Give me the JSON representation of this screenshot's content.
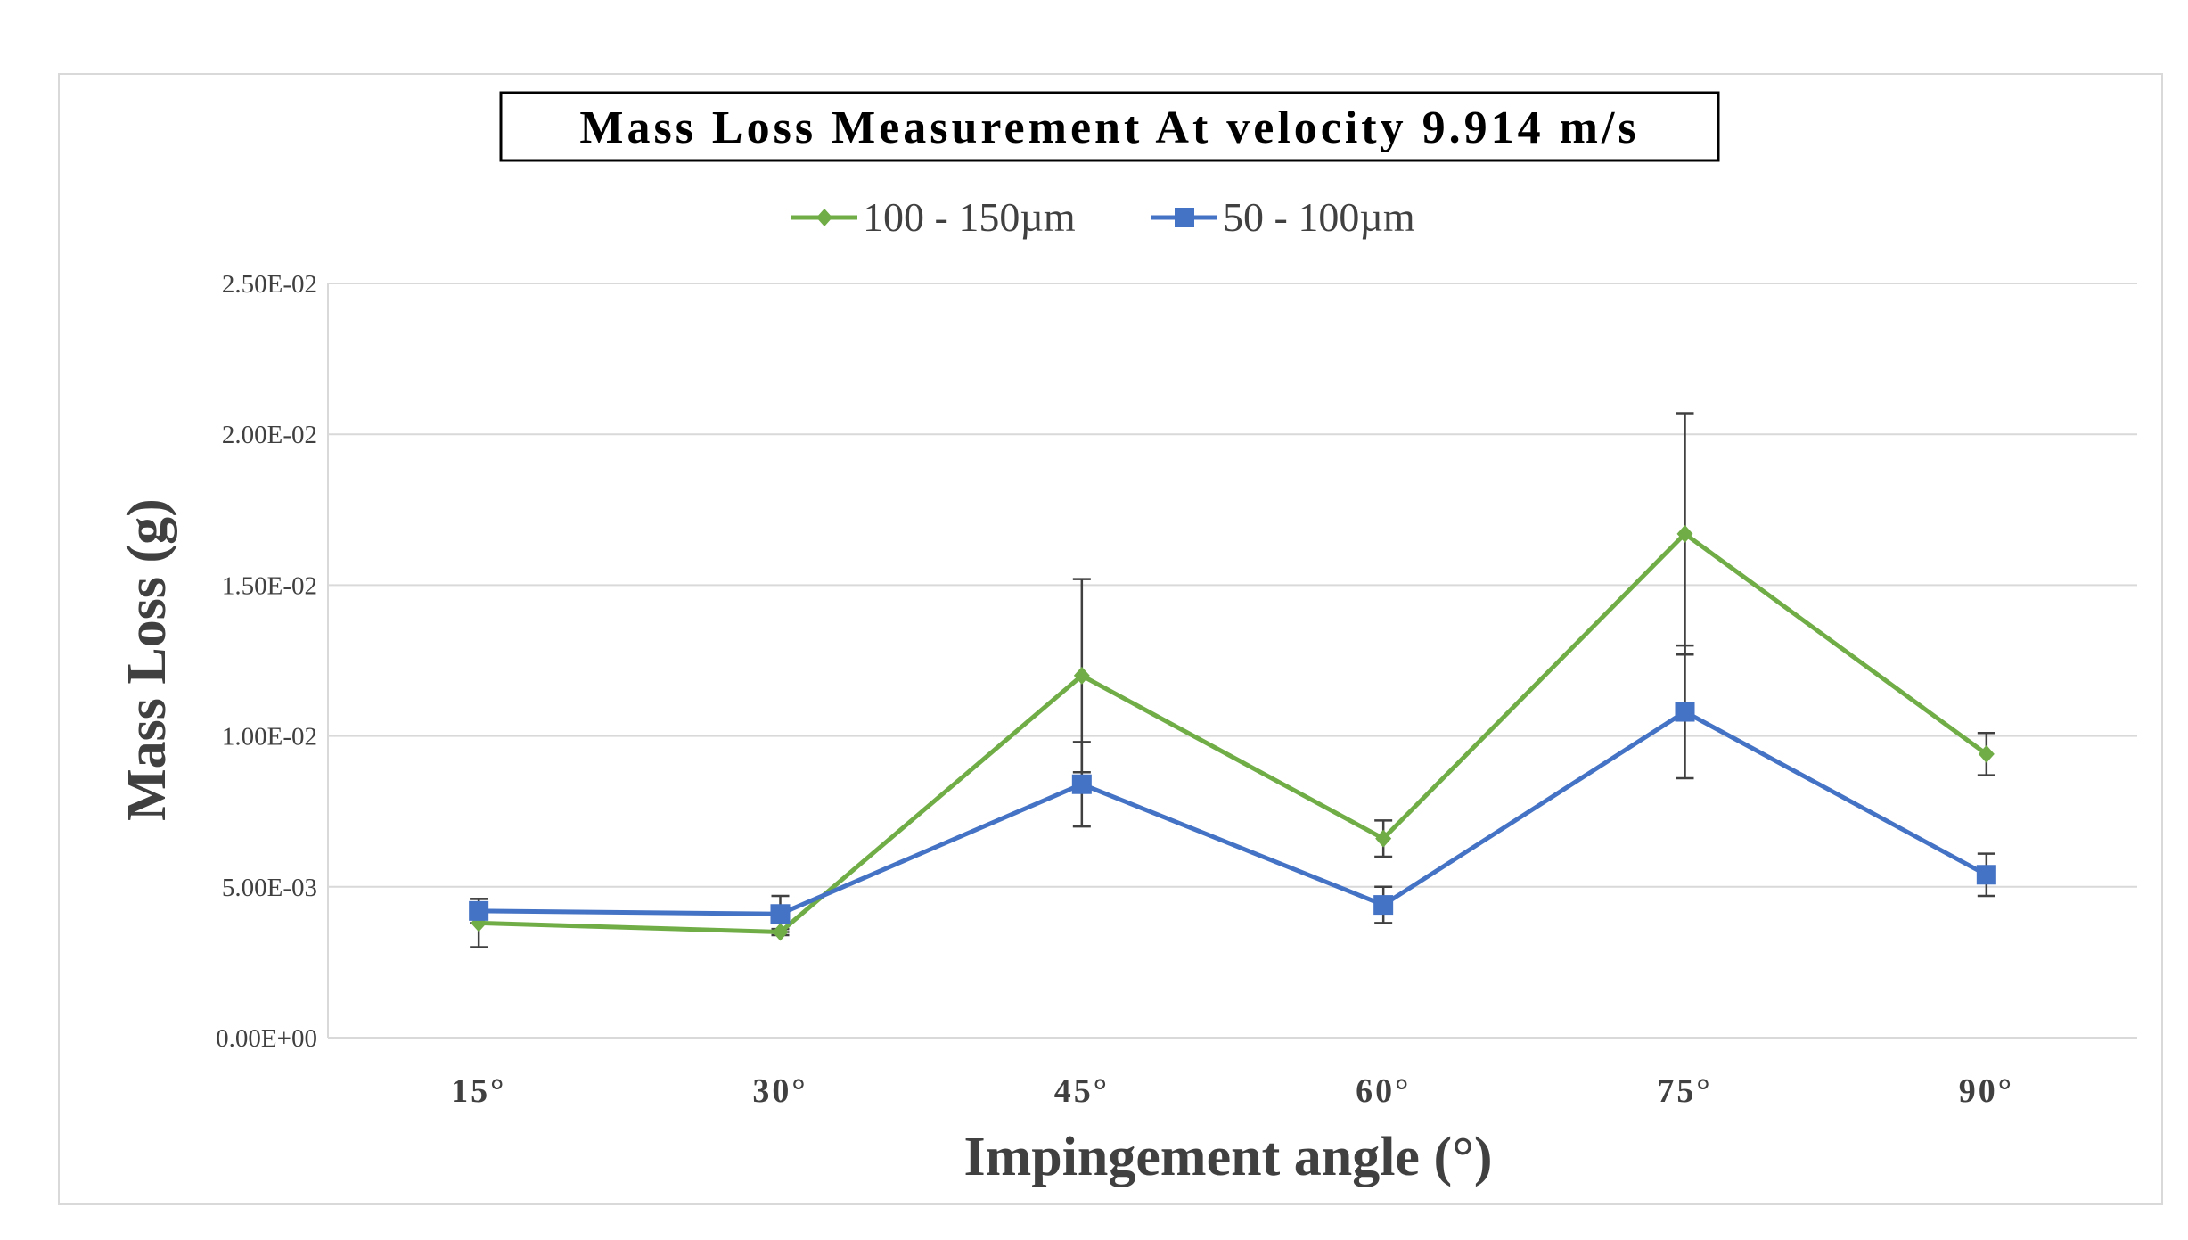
{
  "chart_data": {
    "type": "line",
    "title": "Mass Loss Measurement At velocity 9.914 m/s",
    "xlabel": "Impingement angle (°)",
    "ylabel": "Mass Loss (g)",
    "categories": [
      "15°",
      "30°",
      "45°",
      "60°",
      "75°",
      "90°"
    ],
    "ylim": [
      0,
      0.025
    ],
    "yticks": [
      0,
      0.005,
      0.01,
      0.015,
      0.02,
      0.025
    ],
    "ytick_labels": [
      "0.00E+00",
      "5.00E-03",
      "1.00E-02",
      "1.50E-02",
      "2.00E-02",
      "2.50E-02"
    ],
    "grid": true,
    "legend_position": "top-center",
    "series": [
      {
        "name": "100 - 150µm",
        "color": "#70ad47",
        "marker": "diamond",
        "values": [
          0.0038,
          0.0035,
          0.012,
          0.0066,
          0.0167,
          0.0094
        ],
        "error": [
          0.0008,
          0.0001,
          0.0032,
          0.0006,
          0.004,
          0.0007
        ]
      },
      {
        "name": "50 - 100µm",
        "color": "#4472c4",
        "marker": "square",
        "values": [
          0.0042,
          0.0041,
          0.0084,
          0.0044,
          0.0108,
          0.0054
        ],
        "error": [
          0.0004,
          0.0006,
          0.0014,
          0.0006,
          0.0022,
          0.0007
        ]
      }
    ]
  }
}
